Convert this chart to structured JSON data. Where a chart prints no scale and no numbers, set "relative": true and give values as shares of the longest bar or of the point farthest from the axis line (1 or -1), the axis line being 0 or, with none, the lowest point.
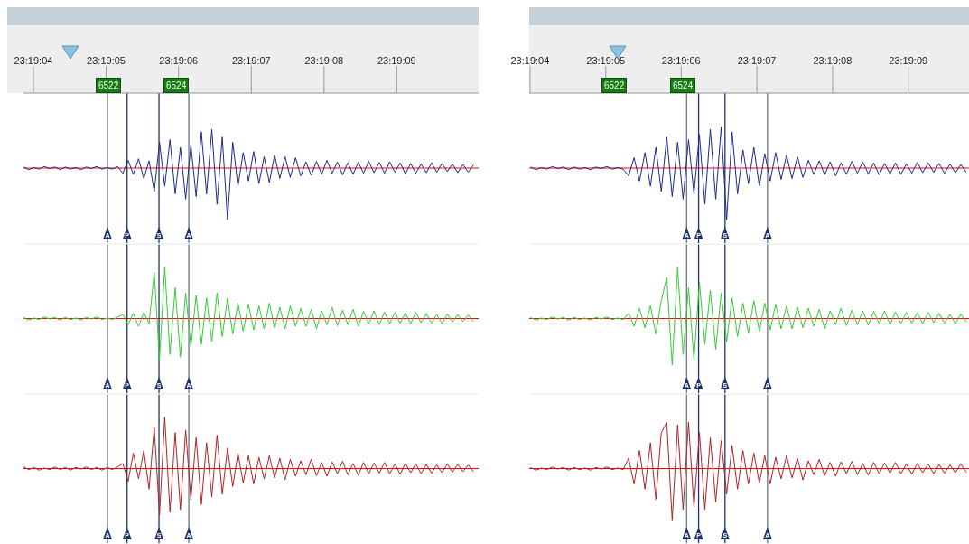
{
  "chart_data": [
    {
      "type": "line",
      "relative": true,
      "x": [
        23.31774,
        23.31776,
        23.31778,
        23.3178,
        23.31782,
        23.31784,
        23.31786,
        23.31788,
        23.3179,
        23.31792,
        23.31794,
        23.31796,
        23.31798,
        23.318,
        23.31802,
        23.31804,
        23.31806,
        23.31808,
        23.3181,
        23.31812,
        23.31814,
        23.31816,
        23.31818,
        23.3182,
        23.31822,
        23.31824,
        23.31826,
        23.31828,
        23.3183,
        23.31832,
        23.31834,
        23.31836,
        23.31838,
        23.3184,
        23.31842,
        23.31844,
        23.31846,
        23.31848,
        23.3185,
        23.31852,
        23.31854,
        23.31856,
        23.31858,
        23.3186,
        23.31862,
        23.31864,
        23.31866,
        23.31868,
        23.3187,
        23.31872,
        23.31874,
        23.31876,
        23.31878,
        23.3188,
        23.31882,
        23.31884,
        23.31886,
        23.31888,
        23.3189,
        23.31892,
        23.31894,
        23.31896,
        23.31898,
        23.319,
        23.31902,
        23.31904,
        23.31906,
        23.31908,
        23.3191,
        23.31912,
        23.31914,
        23.31916,
        23.31918,
        23.3192,
        23.31922,
        23.31924,
        23.31926,
        23.31928,
        23.3193,
        23.31932,
        23.31934,
        23.31936,
        23.31938,
        23.3194,
        23.31942,
        23.31944,
        23.31946
      ],
      "xlim": [
        23.31774,
        23.31948
      ],
      "xticks": [
        {
          "value": 23.317778,
          "label": "23:19:04"
        },
        {
          "value": 23.318056,
          "label": "23:19:05"
        },
        {
          "value": 23.318333,
          "label": "23:19:06"
        },
        {
          "value": 23.318611,
          "label": "23:19:07"
        },
        {
          "value": 23.318889,
          "label": "23:19:08"
        },
        {
          "value": 23.319167,
          "label": "23:19:09"
        }
      ],
      "series": [
        {
          "color": "#1c2a8c",
          "values": [
            0.02,
            -0.03,
            0.01,
            -0.02,
            0.03,
            -0.01,
            0.02,
            -0.03,
            0.02,
            -0.02,
            0.01,
            -0.03,
            0.02,
            -0.01,
            0.03,
            -0.02,
            0.01,
            -0.02,
            0.03,
            -0.1,
            0.15,
            -0.12,
            0.18,
            -0.2,
            0.14,
            -0.45,
            0.5,
            -0.35,
            0.55,
            -0.5,
            0.4,
            -0.6,
            0.45,
            -0.55,
            0.7,
            -0.5,
            0.75,
            -0.7,
            0.6,
            -1,
            0.5,
            -0.35,
            0.3,
            -0.25,
            0.32,
            -0.3,
            0.22,
            -0.28,
            0.25,
            -0.2,
            0.22,
            -0.18,
            0.2,
            -0.15,
            0.12,
            -0.14,
            0.13,
            -0.12,
            0.15,
            -0.1,
            0.12,
            -0.13,
            0.1,
            -0.12,
            0.11,
            -0.1,
            0.13,
            -0.09,
            0.11,
            -0.1,
            0.12,
            -0.08,
            0.1,
            -0.11,
            0.09,
            -0.1,
            0.08,
            -0.09,
            0.1,
            -0.08,
            0.09,
            -0.07,
            0.08,
            -0.09,
            0.07,
            -0.08,
            0.06
          ]
        }
      ],
      "ref_lines": [
        {
          "axis": "y",
          "value": 0,
          "color": "#ff0000"
        },
        {
          "axis": "x",
          "value": 23.318061,
          "label": "A",
          "color": "#6b7480"
        },
        {
          "axis": "x",
          "value": 23.318136,
          "label": "P",
          "color": "#1e3466"
        },
        {
          "axis": "x",
          "value": 23.318258,
          "label": "S",
          "color": "#1e3466"
        },
        {
          "axis": "x",
          "value": 23.318372,
          "label": "A",
          "color": "#6b7480"
        }
      ],
      "annotations": [
        "6522",
        "6524"
      ]
    },
    {
      "type": "line",
      "relative": true,
      "tick_labels": false,
      "x": [
        23.31774,
        23.31776,
        23.31778,
        23.3178,
        23.31782,
        23.31784,
        23.31786,
        23.31788,
        23.3179,
        23.31792,
        23.31794,
        23.31796,
        23.31798,
        23.318,
        23.31802,
        23.31804,
        23.31806,
        23.31808,
        23.3181,
        23.31812,
        23.31814,
        23.31816,
        23.31818,
        23.3182,
        23.31822,
        23.31824,
        23.31826,
        23.31828,
        23.3183,
        23.31832,
        23.31834,
        23.31836,
        23.31838,
        23.3184,
        23.31842,
        23.31844,
        23.31846,
        23.31848,
        23.3185,
        23.31852,
        23.31854,
        23.31856,
        23.31858,
        23.3186,
        23.31862,
        23.31864,
        23.31866,
        23.31868,
        23.3187,
        23.31872,
        23.31874,
        23.31876,
        23.31878,
        23.3188,
        23.31882,
        23.31884,
        23.31886,
        23.31888,
        23.3189,
        23.31892,
        23.31894,
        23.31896,
        23.31898,
        23.319,
        23.31902,
        23.31904,
        23.31906,
        23.31908,
        23.3191,
        23.31912,
        23.31914,
        23.31916,
        23.31918,
        23.3192,
        23.31922,
        23.31924,
        23.31926,
        23.31928,
        23.3193,
        23.31932,
        23.31934,
        23.31936,
        23.31938,
        23.3194,
        23.31942,
        23.31944,
        23.31946
      ],
      "xlim": [
        23.31774,
        23.31948
      ],
      "series": [
        {
          "color": "#33cc33",
          "values": [
            0.02,
            -0.03,
            0.01,
            -0.02,
            0.03,
            -0.01,
            0.02,
            -0.03,
            0.02,
            -0.02,
            0.01,
            -0.03,
            0.02,
            -0.01,
            0.03,
            -0.02,
            0.01,
            -0.02,
            0.03,
            0.08,
            -0.12,
            0.1,
            -0.15,
            0.12,
            -0.1,
            0.9,
            -0.8,
            1,
            -0.7,
            0.6,
            -0.75,
            0.5,
            -0.55,
            0.45,
            -0.5,
            0.4,
            -0.45,
            0.5,
            -0.35,
            0.4,
            -0.3,
            0.3,
            -0.25,
            0.28,
            -0.22,
            0.25,
            -0.2,
            0.3,
            -0.18,
            0.22,
            -0.2,
            0.25,
            -0.15,
            0.2,
            -0.15,
            0.18,
            -0.2,
            0.15,
            -0.12,
            0.22,
            -0.14,
            0.16,
            -0.12,
            0.18,
            -0.15,
            0.14,
            -0.1,
            0.15,
            -0.12,
            0.13,
            -0.1,
            0.12,
            -0.09,
            0.11,
            -0.1,
            0.12,
            -0.08,
            0.1,
            -0.09,
            0.08,
            -0.1,
            0.09,
            -0.07,
            0.08,
            -0.06,
            0.07,
            -0.06
          ]
        }
      ],
      "ref_lines": [
        {
          "axis": "y",
          "value": 0,
          "color": "#ff0000"
        },
        {
          "axis": "x",
          "value": 23.318061,
          "label": "A",
          "color": "#6b7480"
        },
        {
          "axis": "x",
          "value": 23.318136,
          "label": "P",
          "color": "#1e3466"
        },
        {
          "axis": "x",
          "value": 23.318258,
          "label": "S",
          "color": "#1e3466"
        },
        {
          "axis": "x",
          "value": 23.318372,
          "label": "A",
          "color": "#6b7480"
        }
      ]
    },
    {
      "type": "line",
      "relative": true,
      "tick_labels": false,
      "x": [
        23.31774,
        23.31776,
        23.31778,
        23.3178,
        23.31782,
        23.31784,
        23.31786,
        23.31788,
        23.3179,
        23.31792,
        23.31794,
        23.31796,
        23.31798,
        23.318,
        23.31802,
        23.31804,
        23.31806,
        23.31808,
        23.3181,
        23.31812,
        23.31814,
        23.31816,
        23.31818,
        23.3182,
        23.31822,
        23.31824,
        23.31826,
        23.31828,
        23.3183,
        23.31832,
        23.31834,
        23.31836,
        23.31838,
        23.3184,
        23.31842,
        23.31844,
        23.31846,
        23.31848,
        23.3185,
        23.31852,
        23.31854,
        23.31856,
        23.31858,
        23.3186,
        23.31862,
        23.31864,
        23.31866,
        23.31868,
        23.3187,
        23.31872,
        23.31874,
        23.31876,
        23.31878,
        23.3188,
        23.31882,
        23.31884,
        23.31886,
        23.31888,
        23.3189,
        23.31892,
        23.31894,
        23.31896,
        23.31898,
        23.319,
        23.31902,
        23.31904,
        23.31906,
        23.31908,
        23.3191,
        23.31912,
        23.31914,
        23.31916,
        23.31918,
        23.3192,
        23.31922,
        23.31924,
        23.31926,
        23.31928,
        23.3193,
        23.31932,
        23.31934,
        23.31936,
        23.31938,
        23.3194,
        23.31942,
        23.31944,
        23.31946
      ],
      "xlim": [
        23.31774,
        23.31948
      ],
      "series": [
        {
          "color": "#b22222",
          "values": [
            0.03,
            -0.02,
            0.02,
            -0.03,
            0.01,
            -0.02,
            0.03,
            -0.02,
            0.02,
            -0.03,
            0.02,
            -0.01,
            0.03,
            -0.02,
            0.02,
            -0.03,
            0.02,
            -0.02,
            0.03,
            0.1,
            -0.25,
            0.3,
            -0.2,
            0.35,
            -0.4,
            0.8,
            -0.9,
            1,
            -0.85,
            0.7,
            -0.8,
            0.75,
            -0.6,
            0.6,
            -0.7,
            0.5,
            -0.55,
            0.65,
            -0.5,
            0.4,
            -0.35,
            0.3,
            -0.28,
            0.25,
            -0.3,
            0.22,
            -0.2,
            0.25,
            -0.18,
            0.2,
            -0.22,
            0.18,
            -0.15,
            0.15,
            -0.12,
            0.18,
            -0.14,
            0.12,
            -0.15,
            0.13,
            -0.1,
            0.14,
            -0.12,
            0.1,
            -0.13,
            0.12,
            -0.1,
            0.11,
            -0.09,
            0.12,
            -0.1,
            0.09,
            -0.11,
            0.1,
            -0.08,
            0.09,
            -0.1,
            0.08,
            -0.09,
            0.07,
            -0.08,
            0.09,
            -0.07,
            0.08,
            -0.06,
            0.07,
            -0.06
          ]
        }
      ],
      "ref_lines": [
        {
          "axis": "y",
          "value": 0,
          "color": "#ff0000"
        },
        {
          "axis": "x",
          "value": 23.318061,
          "label": "A",
          "color": "#6b7480"
        },
        {
          "axis": "x",
          "value": 23.318136,
          "label": "P",
          "color": "#1e3466"
        },
        {
          "axis": "x",
          "value": 23.318258,
          "label": "S",
          "color": "#1e3466"
        },
        {
          "axis": "x",
          "value": 23.318372,
          "label": "A",
          "color": "#6b7480"
        }
      ]
    },
    {
      "type": "line",
      "relative": true,
      "x": [
        23.31778,
        23.3178,
        23.31782,
        23.31784,
        23.31786,
        23.31788,
        23.3179,
        23.31792,
        23.31794,
        23.31796,
        23.31798,
        23.318,
        23.31802,
        23.31804,
        23.31806,
        23.31808,
        23.3181,
        23.31812,
        23.31814,
        23.31816,
        23.31818,
        23.3182,
        23.31822,
        23.31824,
        23.31826,
        23.31828,
        23.3183,
        23.31832,
        23.31834,
        23.31836,
        23.31838,
        23.3184,
        23.31842,
        23.31844,
        23.31846,
        23.31848,
        23.3185,
        23.31852,
        23.31854,
        23.31856,
        23.31858,
        23.3186,
        23.31862,
        23.31864,
        23.31866,
        23.31868,
        23.3187,
        23.31872,
        23.31874,
        23.31876,
        23.31878,
        23.3188,
        23.31882,
        23.31884,
        23.31886,
        23.31888,
        23.3189,
        23.31892,
        23.31894,
        23.31896,
        23.31898,
        23.319,
        23.31902,
        23.31904,
        23.31906,
        23.31908,
        23.3191,
        23.31912,
        23.31914,
        23.31916,
        23.31918,
        23.3192,
        23.31922,
        23.31924,
        23.31926,
        23.31928,
        23.3193,
        23.31932,
        23.31934,
        23.31936,
        23.31938
      ],
      "xlim": [
        23.317775,
        23.31939
      ],
      "xticks": [
        {
          "value": 23.317778,
          "label": "23:19:04"
        },
        {
          "value": 23.318056,
          "label": "23:19:05"
        },
        {
          "value": 23.318333,
          "label": "23:19:06"
        },
        {
          "value": 23.318611,
          "label": "23:19:07"
        },
        {
          "value": 23.318889,
          "label": "23:19:08"
        },
        {
          "value": 23.319167,
          "label": "23:19:09"
        }
      ],
      "series": [
        {
          "color": "#1c2a8c",
          "values": [
            0.02,
            -0.03,
            0.01,
            -0.02,
            0.03,
            -0.01,
            0.02,
            -0.03,
            0.02,
            -0.02,
            0.01,
            -0.03,
            0.02,
            -0.01,
            0.03,
            -0.02,
            0.01,
            -0.02,
            -0.15,
            0.2,
            -0.25,
            0.3,
            -0.35,
            0.4,
            -0.45,
            0.6,
            -0.55,
            0.5,
            -0.6,
            0.55,
            -0.5,
            0.65,
            -0.7,
            0.75,
            -0.6,
            0.8,
            -1,
            0.7,
            -0.5,
            0.35,
            -0.3,
            0.4,
            -0.35,
            0.28,
            -0.25,
            0.3,
            -0.22,
            0.25,
            -0.2,
            0.22,
            -0.18,
            0.15,
            -0.12,
            0.14,
            -0.13,
            0.12,
            -0.15,
            0.1,
            -0.12,
            0.13,
            -0.1,
            0.12,
            -0.11,
            0.1,
            -0.13,
            0.09,
            -0.11,
            0.1,
            -0.12,
            0.08,
            -0.1,
            0.11,
            -0.09,
            0.1,
            -0.08,
            0.09,
            -0.1,
            0.08,
            -0.09,
            0.07,
            -0.08
          ]
        }
      ],
      "ref_lines": [
        {
          "axis": "y",
          "value": 0,
          "color": "#ff0000"
        },
        {
          "axis": "x",
          "value": 23.318353,
          "label": "A",
          "color": "#6b7480"
        },
        {
          "axis": "x",
          "value": 23.318397,
          "label": "P",
          "color": "#1e3466"
        },
        {
          "axis": "x",
          "value": 23.318494,
          "label": "S",
          "color": "#1e3466"
        },
        {
          "axis": "x",
          "value": 23.31865,
          "label": "A",
          "color": "#6b7480"
        }
      ],
      "annotations": [
        "6522",
        "6524"
      ]
    },
    {
      "type": "line",
      "relative": true,
      "tick_labels": false,
      "x": [
        23.31778,
        23.3178,
        23.31782,
        23.31784,
        23.31786,
        23.31788,
        23.3179,
        23.31792,
        23.31794,
        23.31796,
        23.31798,
        23.318,
        23.31802,
        23.31804,
        23.31806,
        23.31808,
        23.3181,
        23.31812,
        23.31814,
        23.31816,
        23.31818,
        23.3182,
        23.31822,
        23.31824,
        23.31826,
        23.31828,
        23.3183,
        23.31832,
        23.31834,
        23.31836,
        23.31838,
        23.3184,
        23.31842,
        23.31844,
        23.31846,
        23.31848,
        23.3185,
        23.31852,
        23.31854,
        23.31856,
        23.31858,
        23.3186,
        23.31862,
        23.31864,
        23.31866,
        23.31868,
        23.3187,
        23.31872,
        23.31874,
        23.31876,
        23.31878,
        23.3188,
        23.31882,
        23.31884,
        23.31886,
        23.31888,
        23.3189,
        23.31892,
        23.31894,
        23.31896,
        23.31898,
        23.319,
        23.31902,
        23.31904,
        23.31906,
        23.31908,
        23.3191,
        23.31912,
        23.31914,
        23.31916,
        23.31918,
        23.3192,
        23.31922,
        23.31924,
        23.31926,
        23.31928,
        23.3193,
        23.31932,
        23.31934,
        23.31936,
        23.31938
      ],
      "xlim": [
        23.317775,
        23.31939
      ],
      "series": [
        {
          "color": "#33cc33",
          "values": [
            0.02,
            -0.03,
            0.01,
            -0.02,
            0.03,
            -0.01,
            0.02,
            -0.03,
            0.02,
            -0.02,
            0.01,
            -0.03,
            0.02,
            -0.01,
            0.03,
            -0.02,
            0.01,
            -0.02,
            0.1,
            -0.15,
            0.2,
            -0.18,
            0.25,
            -0.3,
            0.35,
            0.8,
            -0.9,
            1,
            -0.7,
            0.6,
            -0.8,
            0.7,
            -0.5,
            0.55,
            -0.6,
            0.5,
            -0.45,
            0.4,
            -0.35,
            0.3,
            -0.28,
            0.35,
            -0.25,
            0.3,
            -0.22,
            0.28,
            -0.2,
            0.25,
            -0.2,
            0.22,
            -0.18,
            0.2,
            -0.15,
            0.18,
            -0.2,
            0.15,
            -0.12,
            0.2,
            -0.14,
            0.16,
            -0.12,
            0.15,
            -0.13,
            0.14,
            -0.1,
            0.15,
            -0.12,
            0.13,
            -0.1,
            0.12,
            -0.09,
            0.11,
            -0.1,
            0.12,
            -0.08,
            0.1,
            -0.09,
            0.08,
            -0.1,
            0.09,
            -0.07
          ]
        }
      ],
      "ref_lines": [
        {
          "axis": "y",
          "value": 0,
          "color": "#ff0000"
        },
        {
          "axis": "x",
          "value": 23.318353,
          "label": "A",
          "color": "#6b7480"
        },
        {
          "axis": "x",
          "value": 23.318397,
          "label": "P",
          "color": "#1e3466"
        },
        {
          "axis": "x",
          "value": 23.318494,
          "label": "S",
          "color": "#1e3466"
        },
        {
          "axis": "x",
          "value": 23.31865,
          "label": "A",
          "color": "#6b7480"
        }
      ]
    },
    {
      "type": "line",
      "relative": true,
      "tick_labels": false,
      "x": [
        23.31778,
        23.3178,
        23.31782,
        23.31784,
        23.31786,
        23.31788,
        23.3179,
        23.31792,
        23.31794,
        23.31796,
        23.31798,
        23.318,
        23.31802,
        23.31804,
        23.31806,
        23.31808,
        23.3181,
        23.31812,
        23.31814,
        23.31816,
        23.31818,
        23.3182,
        23.31822,
        23.31824,
        23.31826,
        23.31828,
        23.3183,
        23.31832,
        23.31834,
        23.31836,
        23.31838,
        23.3184,
        23.31842,
        23.31844,
        23.31846,
        23.31848,
        23.3185,
        23.31852,
        23.31854,
        23.31856,
        23.31858,
        23.3186,
        23.31862,
        23.31864,
        23.31866,
        23.31868,
        23.3187,
        23.31872,
        23.31874,
        23.31876,
        23.31878,
        23.3188,
        23.31882,
        23.31884,
        23.31886,
        23.31888,
        23.3189,
        23.31892,
        23.31894,
        23.31896,
        23.31898,
        23.319,
        23.31902,
        23.31904,
        23.31906,
        23.31908,
        23.3191,
        23.31912,
        23.31914,
        23.31916,
        23.31918,
        23.3192,
        23.31922,
        23.31924,
        23.31926,
        23.31928,
        23.3193,
        23.31932,
        23.31934,
        23.31936,
        23.31938
      ],
      "xlim": [
        23.317775,
        23.31939
      ],
      "series": [
        {
          "color": "#b22222",
          "values": [
            0.02,
            -0.03,
            0.01,
            -0.02,
            0.03,
            -0.01,
            0.02,
            -0.03,
            0.02,
            -0.02,
            0.01,
            -0.03,
            0.02,
            -0.01,
            0.03,
            -0.02,
            0.01,
            -0.02,
            0.2,
            -0.3,
            0.35,
            -0.4,
            0.5,
            -0.6,
            0.7,
            0.9,
            -1,
            0.85,
            -0.8,
            0.9,
            -0.75,
            0.7,
            -0.8,
            0.6,
            -0.65,
            0.55,
            -0.5,
            0.45,
            -0.4,
            0.35,
            -0.3,
            0.3,
            -0.28,
            0.25,
            -0.3,
            0.22,
            -0.2,
            0.25,
            -0.18,
            0.2,
            -0.22,
            0.15,
            -0.12,
            0.18,
            -0.14,
            0.12,
            -0.15,
            0.13,
            -0.1,
            0.14,
            -0.12,
            0.1,
            -0.13,
            0.12,
            -0.1,
            0.11,
            -0.09,
            0.12,
            -0.1,
            0.09,
            -0.11,
            0.1,
            -0.08,
            0.09,
            -0.1,
            0.08,
            -0.09,
            0.07,
            -0.08,
            0.09,
            -0.07
          ]
        }
      ],
      "ref_lines": [
        {
          "axis": "y",
          "value": 0,
          "color": "#ff0000"
        },
        {
          "axis": "x",
          "value": 23.318353,
          "label": "A",
          "color": "#6b7480"
        },
        {
          "axis": "x",
          "value": 23.318397,
          "label": "P",
          "color": "#1e3466"
        },
        {
          "axis": "x",
          "value": 23.318494,
          "label": "S",
          "color": "#1e3466"
        },
        {
          "axis": "x",
          "value": 23.31865,
          "label": "A",
          "color": "#6b7480"
        }
      ]
    }
  ]
}
